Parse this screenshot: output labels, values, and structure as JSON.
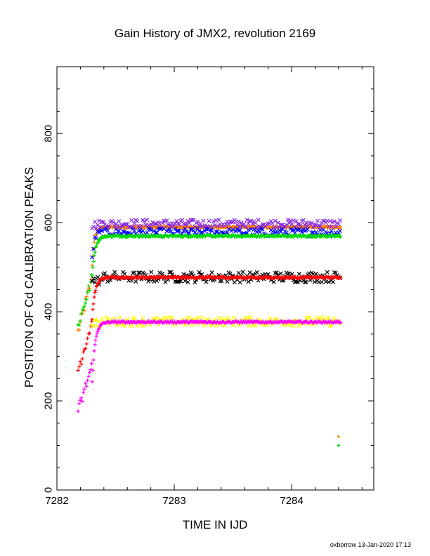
{
  "chart_data": {
    "type": "scatter",
    "title": "Gain History of JMX2, revolution 2169",
    "xlabel": "TIME IN IJD",
    "ylabel": "POSITION OF Cd CALIBRATION PEAKS",
    "xlim": [
      7282.0,
      7284.7
    ],
    "ylim": [
      0,
      950
    ],
    "x_ticks": [
      7282,
      7283,
      7284
    ],
    "y_ticks": [
      0,
      200,
      400,
      600,
      800
    ],
    "grid": false,
    "legend": "none",
    "time_span": [
      7282.3,
      7284.42
    ],
    "series": [
      {
        "color": "#ff7f00",
        "marker": "plus",
        "plateau": 590,
        "start": 355,
        "rise_x": 7282.28,
        "tau": 0.02,
        "jitter": 2
      },
      {
        "color": "#8a2be2",
        "marker": "cross",
        "plateau": 598,
        "start": 595,
        "rise_x": 7282.35,
        "tau": 0.01,
        "jitter": 9
      },
      {
        "color": "#0000ff",
        "marker": "cross",
        "plateau": 578,
        "start": 520,
        "rise_x": 7282.3,
        "tau": 0.02,
        "jitter": 9
      },
      {
        "color": "#00dd00",
        "marker": "plus",
        "plateau": 570,
        "start": 370,
        "rise_x": 7282.28,
        "tau": 0.025,
        "jitter": 2
      },
      {
        "color": "#000000",
        "marker": "cross",
        "plateau": 478,
        "start": 470,
        "rise_x": 7282.38,
        "tau": 0.01,
        "jitter": 12
      },
      {
        "color": "#ff0000",
        "marker": "plus",
        "plateau": 477,
        "start": 270,
        "rise_x": 7282.28,
        "tau": 0.025,
        "jitter": 2
      },
      {
        "color": "#ffff00",
        "marker": "cross",
        "plateau": 378,
        "start": 375,
        "rise_x": 7282.38,
        "tau": 0.01,
        "jitter": 10
      },
      {
        "color": "#ff00ff",
        "marker": "plus",
        "plateau": 377,
        "start": 175,
        "rise_x": 7282.29,
        "tau": 0.025,
        "jitter": 2
      }
    ],
    "outliers": [
      {
        "x": 7284.4,
        "y": 120,
        "color": "#ff7f00"
      },
      {
        "x": 7284.4,
        "y": 100,
        "color": "#00dd00"
      }
    ]
  },
  "footer": "oxborrow 13-Jan-2020 17:13"
}
